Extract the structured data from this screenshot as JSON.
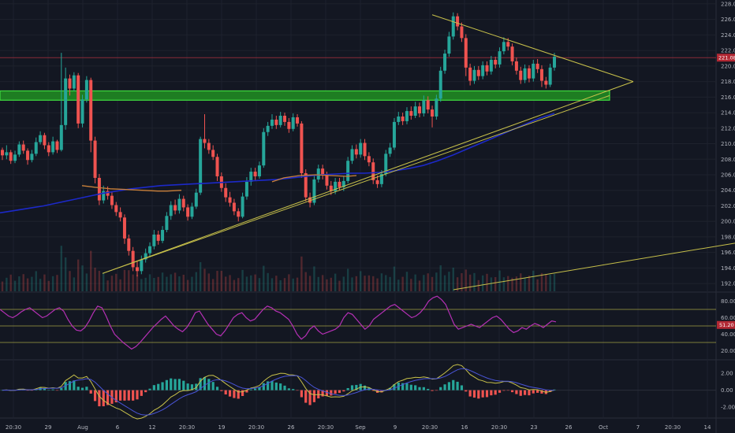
{
  "chart_data": {
    "type": "candlestick",
    "colors": {
      "background": "#131722",
      "grid": "#1e222d",
      "up": "#26a69a",
      "down": "#ef5350",
      "ma": "#1c29c9",
      "vwap": "#c9803a",
      "trend": "#c7c04a",
      "support_fill": "#1e7d22",
      "support_edge": "#3fdc3f",
      "resistance": "#8a2a38",
      "rsi": "#b530b5",
      "rsi_band": "#c7c04a",
      "macd": "#c7c04a",
      "signal": "#4a55d8",
      "hist_up": "#26a69a",
      "hist_down": "#ef5350"
    },
    "price_axis": {
      "min": 191,
      "max": 228.5,
      "ticks": [
        "192.00",
        "194.00",
        "196.00",
        "198.00",
        "200.00",
        "202.00",
        "204.00",
        "206.00",
        "208.00",
        "210.00",
        "212.00",
        "214.00",
        "216.00",
        "218.00",
        "220.00",
        "222.00",
        "224.00",
        "226.00",
        "228.00"
      ],
      "current": 221.08,
      "current_label": "221.08"
    },
    "rsi_axis": {
      "min": 10,
      "max": 90,
      "ticks": [
        "20.00",
        "40.00",
        "60.00",
        "80.00"
      ],
      "upper": 70,
      "mid": 50,
      "lower": 30,
      "current": 51.2,
      "current_label": "51.20"
    },
    "macd_axis": {
      "min": -3.2,
      "max": 3.5,
      "ticks": [
        "2.00",
        "0.00",
        "-2.00"
      ]
    },
    "time_labels": [
      "20:30",
      "29",
      "Aug",
      "6",
      "12",
      "20:30",
      "19",
      "20:30",
      "26",
      "20:30",
      "Sep",
      "9",
      "20:30",
      "16",
      "20:30",
      "23",
      "26",
      "Oct",
      "7",
      "20:30",
      "14"
    ],
    "candles": [
      [
        209.2,
        208.5,
        209.5,
        207.9
      ],
      [
        208.5,
        208.9,
        209.8,
        208.0
      ],
      [
        208.9,
        207.8,
        209.2,
        207.4
      ],
      [
        207.8,
        208.6,
        209.1,
        207.5
      ],
      [
        208.6,
        209.9,
        210.3,
        208.3
      ],
      [
        209.9,
        209.1,
        210.4,
        208.7
      ],
      [
        209.1,
        207.9,
        209.4,
        207.3
      ],
      [
        207.9,
        208.7,
        209.2,
        207.6
      ],
      [
        208.7,
        210.2,
        210.8,
        208.4
      ],
      [
        210.2,
        211.1,
        211.6,
        209.9
      ],
      [
        211.1,
        209.8,
        211.4,
        209.3
      ],
      [
        209.8,
        208.9,
        210.2,
        208.4
      ],
      [
        208.9,
        210.3,
        210.9,
        208.6
      ],
      [
        210.3,
        209.2,
        210.5,
        208.8
      ],
      [
        209.2,
        212.4,
        221.7,
        209.0
      ],
      [
        212.4,
        218.4,
        219.8,
        211.8
      ],
      [
        218.4,
        217.1,
        218.9,
        216.2
      ],
      [
        217.1,
        218.8,
        219.2,
        216.8
      ],
      [
        218.8,
        212.6,
        219.1,
        212.0
      ],
      [
        212.6,
        215.7,
        216.3,
        212.1
      ],
      [
        215.7,
        218.2,
        218.7,
        215.3
      ],
      [
        218.2,
        210.4,
        218.5,
        208.9
      ],
      [
        210.4,
        205.6,
        210.9,
        204.9
      ],
      [
        205.6,
        202.7,
        206.1,
        202.1
      ],
      [
        202.7,
        203.9,
        204.6,
        202.3
      ],
      [
        203.9,
        203.3,
        204.5,
        202.8
      ],
      [
        203.3,
        202.1,
        203.8,
        201.6
      ],
      [
        202.1,
        201.2,
        202.5,
        200.7
      ],
      [
        201.2,
        200.5,
        201.8,
        200.0
      ],
      [
        200.5,
        197.8,
        200.9,
        197.1
      ],
      [
        197.8,
        196.2,
        198.3,
        195.6
      ],
      [
        196.2,
        194.1,
        196.7,
        193.6
      ],
      [
        194.1,
        193.6,
        194.9,
        192.9
      ],
      [
        193.6,
        195.1,
        195.6,
        193.2
      ],
      [
        195.1,
        195.9,
        196.5,
        194.7
      ],
      [
        195.9,
        196.8,
        197.3,
        195.4
      ],
      [
        196.8,
        198.3,
        198.9,
        196.4
      ],
      [
        198.3,
        197.5,
        198.8,
        197.0
      ],
      [
        197.5,
        198.9,
        199.4,
        197.2
      ],
      [
        198.9,
        200.7,
        201.2,
        198.6
      ],
      [
        200.7,
        202.1,
        202.6,
        200.2
      ],
      [
        202.1,
        201.4,
        202.8,
        200.9
      ],
      [
        201.4,
        202.9,
        203.5,
        201.0
      ],
      [
        202.9,
        201.8,
        203.3,
        201.3
      ],
      [
        201.8,
        200.6,
        202.2,
        200.1
      ],
      [
        200.6,
        201.9,
        202.4,
        200.3
      ],
      [
        201.9,
        203.7,
        204.2,
        201.6
      ],
      [
        203.7,
        210.6,
        210.9,
        203.4
      ],
      [
        210.6,
        210.1,
        213.8,
        209.4
      ],
      [
        210.1,
        209.2,
        210.6,
        208.7
      ],
      [
        209.2,
        208.3,
        209.8,
        207.9
      ],
      [
        208.3,
        205.8,
        208.7,
        205.2
      ],
      [
        205.8,
        204.3,
        206.3,
        203.8
      ],
      [
        204.3,
        203.1,
        204.9,
        202.5
      ],
      [
        203.1,
        202.4,
        203.8,
        201.9
      ],
      [
        202.4,
        201.3,
        202.9,
        200.8
      ],
      [
        201.3,
        200.6,
        201.7,
        200.0
      ],
      [
        200.6,
        203.2,
        203.7,
        200.4
      ],
      [
        203.2,
        205.1,
        205.7,
        202.8
      ],
      [
        205.1,
        206.4,
        206.9,
        204.6
      ],
      [
        206.4,
        205.8,
        206.9,
        205.3
      ],
      [
        205.8,
        207.2,
        207.7,
        205.5
      ],
      [
        207.2,
        211.5,
        212.0,
        206.9
      ],
      [
        211.5,
        212.3,
        212.8,
        211.0
      ],
      [
        212.3,
        213.1,
        213.8,
        211.9
      ],
      [
        213.1,
        212.4,
        213.6,
        211.9
      ],
      [
        212.4,
        213.6,
        214.1,
        212.1
      ],
      [
        213.6,
        212.8,
        214.0,
        212.3
      ],
      [
        212.8,
        211.9,
        213.3,
        211.4
      ],
      [
        211.9,
        213.4,
        213.9,
        211.6
      ],
      [
        213.4,
        212.6,
        213.8,
        212.2
      ],
      [
        212.6,
        206.2,
        212.9,
        205.6
      ],
      [
        206.2,
        203.1,
        206.7,
        202.6
      ],
      [
        203.1,
        202.4,
        203.7,
        201.8
      ],
      [
        202.4,
        205.4,
        206.0,
        202.1
      ],
      [
        205.4,
        206.8,
        207.3,
        205.0
      ],
      [
        206.8,
        205.9,
        207.3,
        205.4
      ],
      [
        205.9,
        204.6,
        206.4,
        204.1
      ],
      [
        204.6,
        203.9,
        205.2,
        203.4
      ],
      [
        203.9,
        205.1,
        205.6,
        203.5
      ],
      [
        205.1,
        204.4,
        205.6,
        204.0
      ],
      [
        204.4,
        205.2,
        205.8,
        203.9
      ],
      [
        205.2,
        207.8,
        208.3,
        204.9
      ],
      [
        207.8,
        209.3,
        209.8,
        207.4
      ],
      [
        209.3,
        208.6,
        209.9,
        208.1
      ],
      [
        208.6,
        210.1,
        210.6,
        208.2
      ],
      [
        210.1,
        208.4,
        210.6,
        207.9
      ],
      [
        208.4,
        207.6,
        208.9,
        207.1
      ],
      [
        207.6,
        205.3,
        208.1,
        204.8
      ],
      [
        205.3,
        204.8,
        205.9,
        204.3
      ],
      [
        204.8,
        206.1,
        206.6,
        204.4
      ],
      [
        206.1,
        208.7,
        209.2,
        205.8
      ],
      [
        208.7,
        209.5,
        210.1,
        208.3
      ],
      [
        209.5,
        212.8,
        213.3,
        209.2
      ],
      [
        212.8,
        213.5,
        214.1,
        212.4
      ],
      [
        213.5,
        212.9,
        214.0,
        212.4
      ],
      [
        212.9,
        214.2,
        214.7,
        212.5
      ],
      [
        214.2,
        213.6,
        214.8,
        213.1
      ],
      [
        213.6,
        214.8,
        215.4,
        213.3
      ],
      [
        214.8,
        213.9,
        215.3,
        213.4
      ],
      [
        213.9,
        215.6,
        216.2,
        213.5
      ],
      [
        215.6,
        214.4,
        216.1,
        213.9
      ],
      [
        214.4,
        213.5,
        214.9,
        212.1
      ],
      [
        213.5,
        215.8,
        216.3,
        213.1
      ],
      [
        215.8,
        219.4,
        219.9,
        215.4
      ],
      [
        219.4,
        221.6,
        222.1,
        219.0
      ],
      [
        221.6,
        223.8,
        224.4,
        221.2
      ],
      [
        223.8,
        226.4,
        226.9,
        223.4
      ],
      [
        226.4,
        225.1,
        226.8,
        224.6
      ],
      [
        225.1,
        223.6,
        225.6,
        223.1
      ],
      [
        223.6,
        219.8,
        224.1,
        218.7
      ],
      [
        219.8,
        218.1,
        220.3,
        217.5
      ],
      [
        218.1,
        219.5,
        220.0,
        217.7
      ],
      [
        219.5,
        218.7,
        220.0,
        218.2
      ],
      [
        218.7,
        220.1,
        220.6,
        218.3
      ],
      [
        220.1,
        219.3,
        220.6,
        218.8
      ],
      [
        219.3,
        220.8,
        221.3,
        218.9
      ],
      [
        220.8,
        220.2,
        221.2,
        219.7
      ],
      [
        220.2,
        221.9,
        222.4,
        219.8
      ],
      [
        221.9,
        223.1,
        223.7,
        221.5
      ],
      [
        223.1,
        222.5,
        223.6,
        222.0
      ],
      [
        222.5,
        220.6,
        222.9,
        220.1
      ],
      [
        220.6,
        219.4,
        221.1,
        218.9
      ],
      [
        219.4,
        218.2,
        219.9,
        217.7
      ],
      [
        218.2,
        219.7,
        220.2,
        217.8
      ],
      [
        219.7,
        218.4,
        220.1,
        217.9
      ],
      [
        218.4,
        220.3,
        220.8,
        218.0
      ],
      [
        220.3,
        219.6,
        220.9,
        219.1
      ],
      [
        219.6,
        218.1,
        220.1,
        217.3
      ],
      [
        218.1,
        217.6,
        218.6,
        217.1
      ],
      [
        217.6,
        219.8,
        220.3,
        217.3
      ],
      [
        219.8,
        221.2,
        221.7,
        219.4
      ]
    ],
    "ma_line": [
      201.1,
      201.4,
      201.7,
      202.0,
      202.4,
      202.8,
      203.2,
      203.6,
      203.9,
      204.2,
      204.4,
      204.6,
      204.7,
      204.8,
      204.9,
      205.0,
      205.1,
      205.2,
      205.3,
      205.4,
      205.6,
      205.8,
      206.0,
      206.1,
      206.2,
      206.2,
      206.3,
      206.5,
      206.8,
      207.2,
      207.8,
      208.5,
      209.3,
      210.1,
      210.9,
      211.7,
      212.5,
      213.3,
      213.9
    ],
    "vwap_line": [
      204.6,
      204.4,
      204.2,
      204.1,
      204.0,
      203.9,
      203.9,
      204.0,
      205.1,
      205.6,
      205.9,
      206.0,
      205.9,
      205.8,
      205.9
    ],
    "rsi": [
      70,
      66,
      62,
      60,
      63,
      67,
      70,
      72,
      68,
      64,
      60,
      62,
      66,
      70,
      72,
      68,
      58,
      50,
      45,
      44,
      48,
      56,
      66,
      74,
      72,
      62,
      50,
      40,
      35,
      30,
      26,
      22,
      25,
      30,
      36,
      42,
      48,
      53,
      58,
      62,
      56,
      50,
      46,
      43,
      48,
      56,
      66,
      68,
      60,
      52,
      46,
      40,
      38,
      44,
      52,
      60,
      64,
      66,
      60,
      56,
      58,
      64,
      70,
      74,
      72,
      68,
      66,
      62,
      58,
      50,
      40,
      34,
      38,
      46,
      50,
      44,
      40,
      42,
      44,
      46,
      50,
      60,
      66,
      64,
      58,
      52,
      46,
      50,
      58,
      62,
      66,
      70,
      74,
      76,
      72,
      68,
      64,
      60,
      62,
      66,
      72,
      80,
      84,
      86,
      82,
      76,
      64,
      52,
      46,
      48,
      50,
      52,
      50,
      48,
      52,
      56,
      60,
      62,
      58,
      52,
      46,
      42,
      44,
      48,
      46,
      50,
      53,
      51,
      48,
      52,
      56,
      55
    ]
  }
}
